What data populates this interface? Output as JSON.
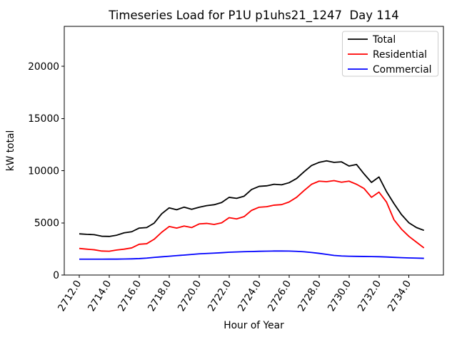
{
  "chart_data": {
    "type": "line",
    "title": "Timeseries Load for P1U p1uhs21_1247  Day 114",
    "xlabel": "Hour of Year",
    "ylabel": "kW total",
    "xlim": [
      2711.0,
      2736.3
    ],
    "ylim": [
      0,
      23840
    ],
    "x_ticks": [
      2712,
      2714,
      2716,
      2718,
      2720,
      2722,
      2724,
      2726,
      2728,
      2730,
      2732,
      2734
    ],
    "x_tick_labels": [
      "2712.0",
      "2714.0",
      "2716.0",
      "2718.0",
      "2720.0",
      "2722.0",
      "2724.0",
      "2726.0",
      "2728.0",
      "2730.0",
      "2732.0",
      "2734.0"
    ],
    "y_ticks": [
      0,
      5000,
      10000,
      15000,
      20000
    ],
    "y_tick_labels": [
      "0",
      "5000",
      "10000",
      "15000",
      "20000"
    ],
    "x_tick_rotation_deg": 58,
    "grid": false,
    "legend_position": "upper right",
    "x_start": 2712.0,
    "x_step": 0.5,
    "series": [
      {
        "name": "Total",
        "color": "#000000",
        "values": [
          3950,
          3900,
          3870,
          3720,
          3700,
          3820,
          4050,
          4150,
          4500,
          4550,
          4980,
          5870,
          6440,
          6260,
          6510,
          6300,
          6500,
          6650,
          6740,
          6950,
          7450,
          7350,
          7560,
          8200,
          8500,
          8550,
          8700,
          8650,
          8850,
          9250,
          9900,
          10500,
          10800,
          10950,
          10800,
          10850,
          10450,
          10600,
          9700,
          8880,
          9400,
          8000,
          6850,
          5800,
          5000,
          4550,
          4280
        ]
      },
      {
        "name": "Residential",
        "color": "#ff0000",
        "values": [
          2550,
          2480,
          2420,
          2300,
          2280,
          2400,
          2480,
          2600,
          2950,
          3000,
          3430,
          4100,
          4650,
          4500,
          4700,
          4550,
          4900,
          4950,
          4850,
          5000,
          5500,
          5380,
          5600,
          6200,
          6500,
          6550,
          6700,
          6750,
          7000,
          7450,
          8100,
          8700,
          9000,
          8950,
          9050,
          8900,
          9000,
          8700,
          8300,
          7450,
          7950,
          7000,
          5300,
          4400,
          3700,
          3150,
          2600
        ]
      },
      {
        "name": "Commercial",
        "color": "#0000ff",
        "values": [
          1520,
          1520,
          1520,
          1520,
          1525,
          1525,
          1535,
          1550,
          1575,
          1620,
          1690,
          1745,
          1800,
          1860,
          1915,
          1970,
          2030,
          2065,
          2100,
          2140,
          2185,
          2210,
          2235,
          2255,
          2275,
          2290,
          2300,
          2300,
          2295,
          2270,
          2230,
          2160,
          2080,
          1980,
          1880,
          1825,
          1800,
          1790,
          1780,
          1770,
          1755,
          1730,
          1695,
          1665,
          1640,
          1620,
          1600
        ]
      }
    ]
  }
}
